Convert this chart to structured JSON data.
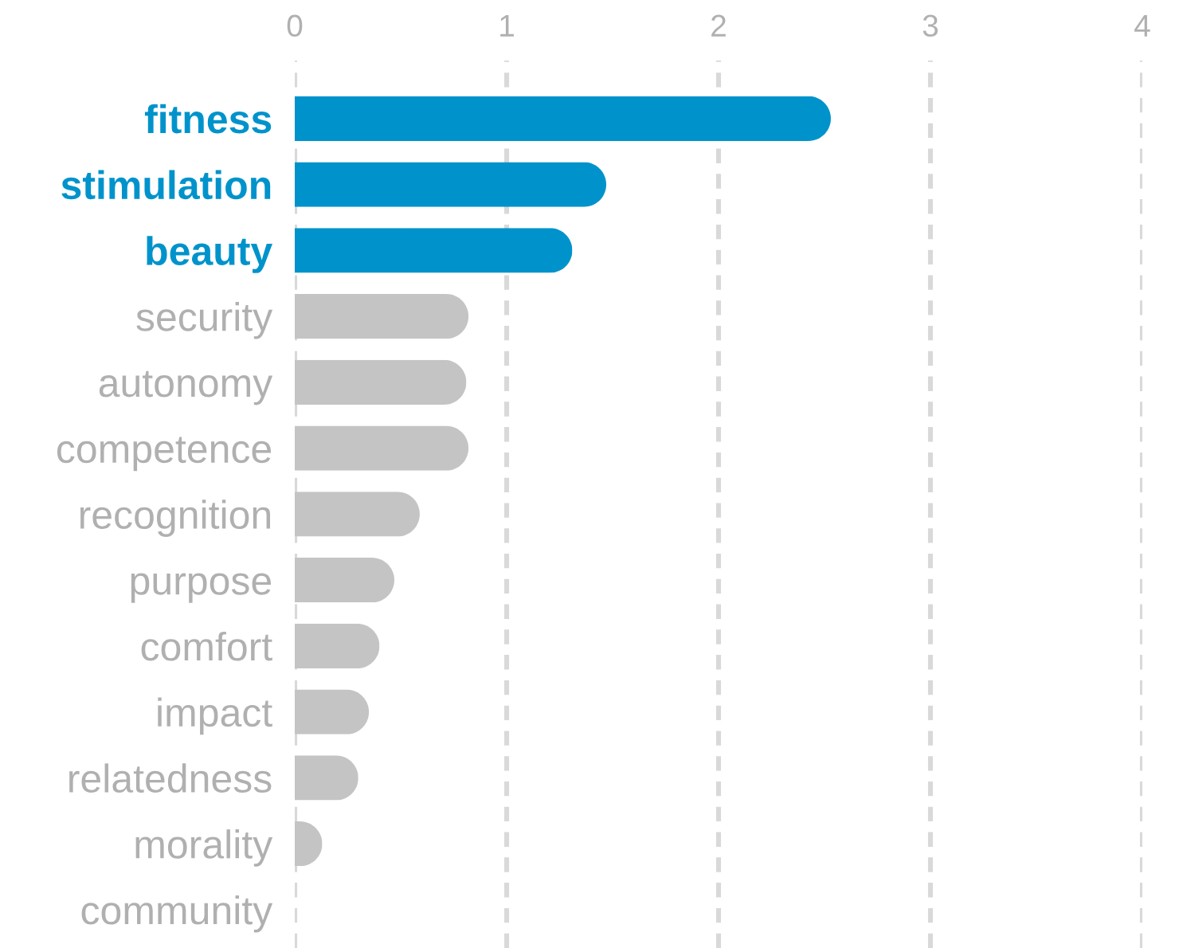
{
  "chart_data": {
    "type": "bar",
    "orientation": "horizontal",
    "categories": [
      "fitness",
      "stimulation",
      "beauty",
      "security",
      "autonomy",
      "competence",
      "recognition",
      "purpose",
      "comfort",
      "impact",
      "relatedness",
      "morality",
      "community"
    ],
    "values": [
      2.53,
      1.47,
      1.31,
      0.82,
      0.81,
      0.82,
      0.59,
      0.47,
      0.4,
      0.35,
      0.3,
      0.13,
      0
    ],
    "colors": [
      "#0093cb",
      "#0093cb",
      "#0093cb",
      "#c4c4c4",
      "#c4c4c4",
      "#c4c4c4",
      "#c4c4c4",
      "#c4c4c4",
      "#c4c4c4",
      "#c4c4c4",
      "#c4c4c4",
      "#c4c4c4",
      "#c4c4c4"
    ],
    "xlim": [
      0,
      4
    ],
    "xticks": [
      0,
      1,
      2,
      3,
      4
    ],
    "grid": "x"
  }
}
